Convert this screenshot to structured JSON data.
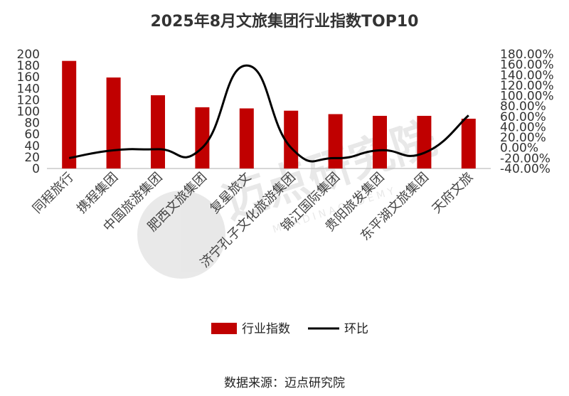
{
  "title": "2025年8月文旅集团行业指数TOP10",
  "source": "数据来源：迈点研究院",
  "watermark": {
    "text": "迈点研究院",
    "subtext": "M E A D I N   A C A D E M Y"
  },
  "colors": {
    "bar": "#c00000",
    "line": "#000000",
    "axis": "#bfbfbf",
    "text": "#333333"
  },
  "chart_data": {
    "type": "bar",
    "categories": [
      "同程旅行",
      "携程集团",
      "中国旅游集团",
      "肥西文旅集团",
      "复星旅文",
      "济宁孔子文化旅游集团",
      "锦江国际集团",
      "贵阳旅发集团",
      "东平湖文旅集团",
      "天府文旅"
    ],
    "series": [
      {
        "name": "行业指数",
        "type": "bar",
        "axis": "left",
        "values": [
          188,
          159,
          128,
          107,
          105,
          101,
          95,
          92,
          92,
          87
        ]
      },
      {
        "name": "环比",
        "type": "line",
        "axis": "right",
        "unit": "%",
        "values": [
          -20,
          -5,
          -3,
          0,
          158,
          0,
          -20,
          -5,
          -10,
          62
        ]
      }
    ],
    "ylim_left": [
      0,
      200
    ],
    "yticks_left": [
      0,
      20,
      40,
      60,
      80,
      100,
      120,
      140,
      160,
      180,
      200
    ],
    "ylim_right": [
      -40,
      180
    ],
    "yticks_right": [
      "-40.00%",
      "-20.00%",
      "0.00%",
      "20.00%",
      "40.00%",
      "60.00%",
      "80.00%",
      "100.00%",
      "120.00%",
      "140.00%",
      "160.00%",
      "180.00%"
    ],
    "yticks_right_values": [
      -40,
      -20,
      0,
      20,
      40,
      60,
      80,
      100,
      120,
      140,
      160,
      180
    ],
    "legend": [
      "行业指数",
      "环比"
    ],
    "legend_position": "bottom",
    "grid": false
  }
}
